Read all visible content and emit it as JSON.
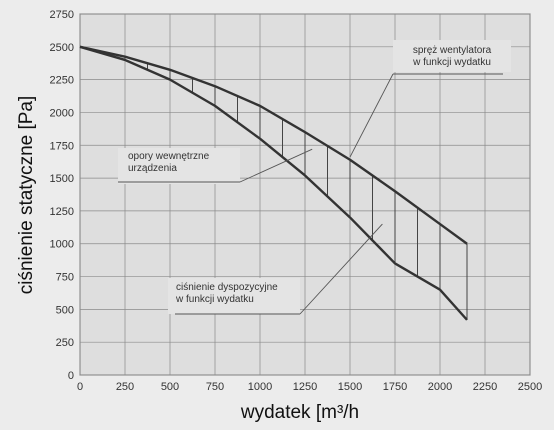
{
  "chart_data": {
    "type": "line",
    "xlabel": "wydatek [m³/h",
    "ylabel": "ciśnienie statyczne [Pa]",
    "xlim": [
      0,
      2500
    ],
    "ylim": [
      0,
      2750
    ],
    "xticks": [
      "0",
      "250",
      "500",
      "750",
      "1000",
      "1250",
      "1500",
      "1750",
      "2000",
      "2250",
      "2500"
    ],
    "yticks": [
      "0",
      "250",
      "500",
      "750",
      "1000",
      "1250",
      "1500",
      "1750",
      "2000",
      "2250",
      "2500",
      "2750"
    ],
    "grid": true,
    "series": [
      {
        "x": [
          0,
          250,
          500,
          750,
          1000,
          1250,
          1500,
          1750,
          2000,
          2150
        ],
        "y": [
          2500,
          2425,
          2325,
          2200,
          2050,
          1850,
          1640,
          1400,
          1150,
          1000
        ]
      },
      {
        "x": [
          0,
          250,
          500,
          750,
          1000,
          1250,
          1500,
          1750,
          2000,
          2150
        ],
        "y": [
          2500,
          2400,
          2250,
          2050,
          1800,
          1520,
          1200,
          850,
          650,
          420
        ]
      }
    ],
    "hatch_x": [
      250,
      375,
      500,
      625,
      750,
      875,
      1000,
      1125,
      1250,
      1375,
      1500,
      1625,
      1750,
      1875,
      2000,
      2150
    ],
    "annotations": [
      {
        "text_lines": [
          "spręż wentylatora",
          "w funkcji wydatku"
        ],
        "target": [
          1500,
          1660
        ]
      },
      {
        "text_lines": [
          "opory wewnętrzne",
          "urządzenia"
        ],
        "target": [
          1290,
          1720
        ]
      },
      {
        "text_lines": [
          "ciśnienie dyspozycyjne",
          "w funkcji wydatku"
        ],
        "target": [
          1680,
          1150
        ]
      }
    ]
  }
}
